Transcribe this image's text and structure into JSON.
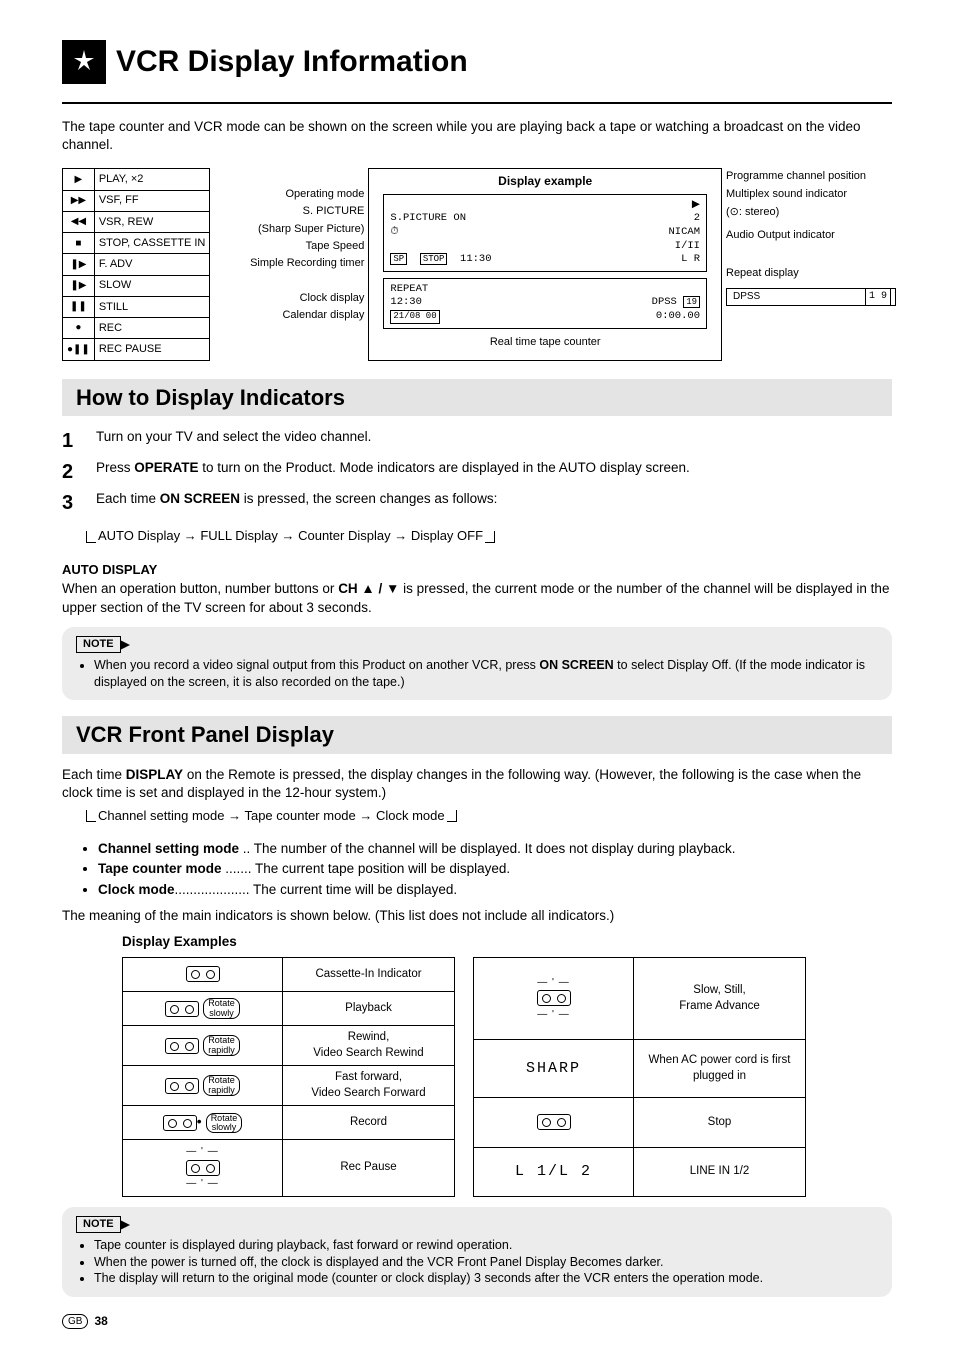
{
  "title": "VCR Display Information",
  "intro": "The tape counter and VCR mode can be shown on the screen while you are playing back a tape or watching a broadcast on the video channel.",
  "mode_rows": [
    {
      "icon": "▶",
      "label": "PLAY, ×2"
    },
    {
      "icon": "▶▶",
      "label": "VSF, FF"
    },
    {
      "icon": "◀◀",
      "label": "VSR, REW"
    },
    {
      "icon": "■",
      "label": "STOP, CASSETTE IN"
    },
    {
      "icon": "❚▶",
      "label": "F. ADV"
    },
    {
      "icon": "❚▶",
      "label": "SLOW"
    },
    {
      "icon": "❚❚",
      "label": "STILL"
    },
    {
      "icon": "●",
      "label": "REC"
    },
    {
      "icon": "●❚❚",
      "label": "REC PAUSE"
    }
  ],
  "left_labels": {
    "oper": "Operating mode",
    "spic": "S. PICTURE",
    "spic_sub": "(Sharp Super Picture)",
    "tape": "Tape Speed",
    "simple": "Simple Recording timer",
    "clock": "Clock display",
    "cal": "Calendar display"
  },
  "display_example": {
    "title": "Display example",
    "osd1": {
      "r1_right": "▶",
      "r2_left": "S.PICTURE ON",
      "r2_right_a": "2",
      "r2_right_b": "NICAM",
      "r3_left": "⏱",
      "r3_right": "I/II",
      "r4_a": "SP",
      "r4_b": "STOP",
      "r4_c": "11:30",
      "r4_d": "L  R"
    },
    "osd2": {
      "r1": "REPEAT",
      "r2_left": "12:30",
      "r2_right": "DPSS",
      "r2_badge": "19",
      "r3_left": "21/08 00",
      "r3_right": "0:00.00"
    },
    "bottom_caption": "Real time tape counter"
  },
  "right_labels": {
    "prog": "Programme channel position",
    "multi": "Multiplex sound indicator",
    "multi_sub": "(⊙: stereo)",
    "audio": "Audio Output indicator",
    "repeat": "Repeat display",
    "dpss": "DPSS",
    "dpss_seg": "1 9"
  },
  "how_to": {
    "header": "How to Display Indicators",
    "steps": [
      "Turn on your TV and select the video channel.",
      "Press OPERATE to turn on the Product. Mode indicators are displayed in the AUTO display screen.",
      "Each time ON SCREEN is pressed, the screen changes as follows:"
    ],
    "flow": "AUTO Display → FULL Display → Counter Display → Display OFF"
  },
  "auto_display": {
    "head": "AUTO DISPLAY",
    "body_a": "When an operation button, number buttons or ",
    "body_b": "CH ▲ / ▼",
    "body_c": " is pressed, the current mode or the number of the channel will be displayed in the upper section of the TV screen for about 3 seconds."
  },
  "note1": {
    "label": "NOTE",
    "items": [
      "When you record a video signal output from this Product on another VCR, press ON SCREEN to select Display Off. (If the mode indicator is displayed on the screen, it is also recorded on the tape.)"
    ]
  },
  "front_panel": {
    "header": "VCR Front Panel Display",
    "p1": "Each time DISPLAY on the Remote is pressed, the display changes in the following way. (However, the following is the case when the clock time is set and displayed in the 12-hour system.)",
    "flow": "Channel setting mode → Tape counter mode → Clock mode",
    "modes": [
      {
        "name": "Channel setting mode",
        "dots": " .. ",
        "desc": "The number of the channel will be displayed. It does not display during playback."
      },
      {
        "name": "Tape counter mode",
        "dots": " ....... ",
        "desc": "The current tape position will be displayed."
      },
      {
        "name": "Clock mode",
        "dots": ".................... ",
        "desc": "The current time will be displayed."
      }
    ],
    "p2": "The meaning of the main indicators is shown below. (This list does not include all indicators.)",
    "disp_ex_title": "Display Examples",
    "table1": [
      {
        "g": "cassette",
        "l": "Cassette-In Indicator"
      },
      {
        "g": "rot-slow",
        "l": "Playback"
      },
      {
        "g": "rot-rapid-left",
        "l": "Rewind,\nVideo Search Rewind"
      },
      {
        "g": "rot-rapid-right",
        "l": "Fast forward,\nVideo Search Forward"
      },
      {
        "g": "rot-slow-dot",
        "l": "Record"
      },
      {
        "g": "cassette-blink",
        "l": "Rec Pause"
      }
    ],
    "table2": [
      {
        "g": "cassette-blink",
        "l": "Slow, Still,\nFrame Advance"
      },
      {
        "g": "seg-sharp",
        "l": "When AC power cord is first plugged in"
      },
      {
        "g": "cassette",
        "l": "Stop"
      },
      {
        "g": "seg-line",
        "l": "LINE IN 1/2"
      }
    ],
    "seg_sharp_text": "SHARP",
    "seg_line_text": "L 1/L 2"
  },
  "note2": {
    "label": "NOTE",
    "items": [
      "Tape counter is displayed during playback, fast forward or rewind operation.",
      "When the power is turned off, the clock is displayed and the VCR Front Panel Display Becomes darker.",
      "The display will return to the original mode (counter or clock display) 3 seconds after the VCR enters the operation mode."
    ]
  },
  "footer": {
    "gb": "GB",
    "page": "38"
  }
}
